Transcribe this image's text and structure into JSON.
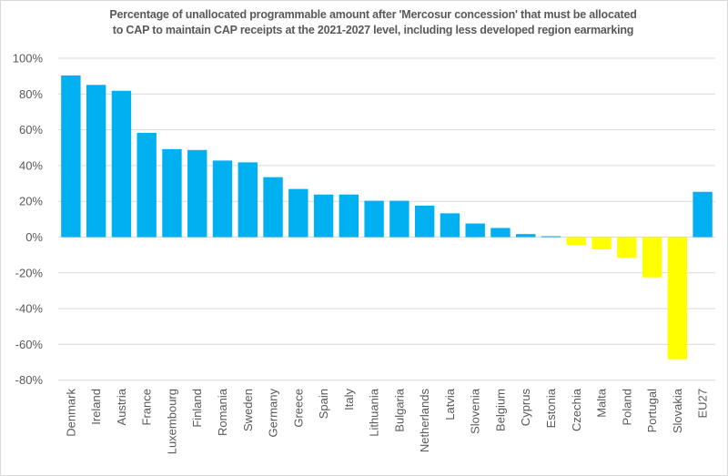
{
  "chart_data": {
    "type": "bar",
    "title_line1": "Percentage of unallocated programmable amount after 'Mercosur concession' that must be allocated",
    "title_line2": "to CAP to maintain CAP receipts at the 2021-2027 level, including less developed region earmarking",
    "xlabel": "",
    "ylabel": "",
    "ylim": [
      -80,
      100
    ],
    "yticks": [
      100,
      80,
      60,
      40,
      20,
      0,
      -20,
      -40,
      -60,
      -80
    ],
    "ytick_labels": [
      "100%",
      "80%",
      "60%",
      "40%",
      "20%",
      "0%",
      "-20%",
      "-40%",
      "-60%",
      "-80%"
    ],
    "grid": true,
    "legend": "none",
    "colors": {
      "positive": "#00b0f0",
      "negative": "#ffff00"
    },
    "categories": [
      "Denmark",
      "Ireland",
      "Austria",
      "France",
      "Luxembourg",
      "Finland",
      "Romania",
      "Sweden",
      "Germany",
      "Greece",
      "Spain",
      "Italy",
      "Lithuania",
      "Bulgaria",
      "Netherlands",
      "Latvia",
      "Slovenia",
      "Belgium",
      "Cyprus",
      "Estonia",
      "Czechia",
      "Malta",
      "Poland",
      "Portugal",
      "Slovakia",
      "EU27"
    ],
    "values": [
      90.4,
      85.1,
      81.8,
      58.3,
      49.2,
      48.7,
      42.8,
      41.8,
      33.5,
      26.9,
      23.8,
      23.8,
      20.3,
      20.3,
      17.6,
      13.3,
      7.6,
      5.1,
      1.7,
      0.5,
      -4.4,
      -6.9,
      -11.4,
      -22.5,
      -68.3,
      25.3
    ]
  }
}
